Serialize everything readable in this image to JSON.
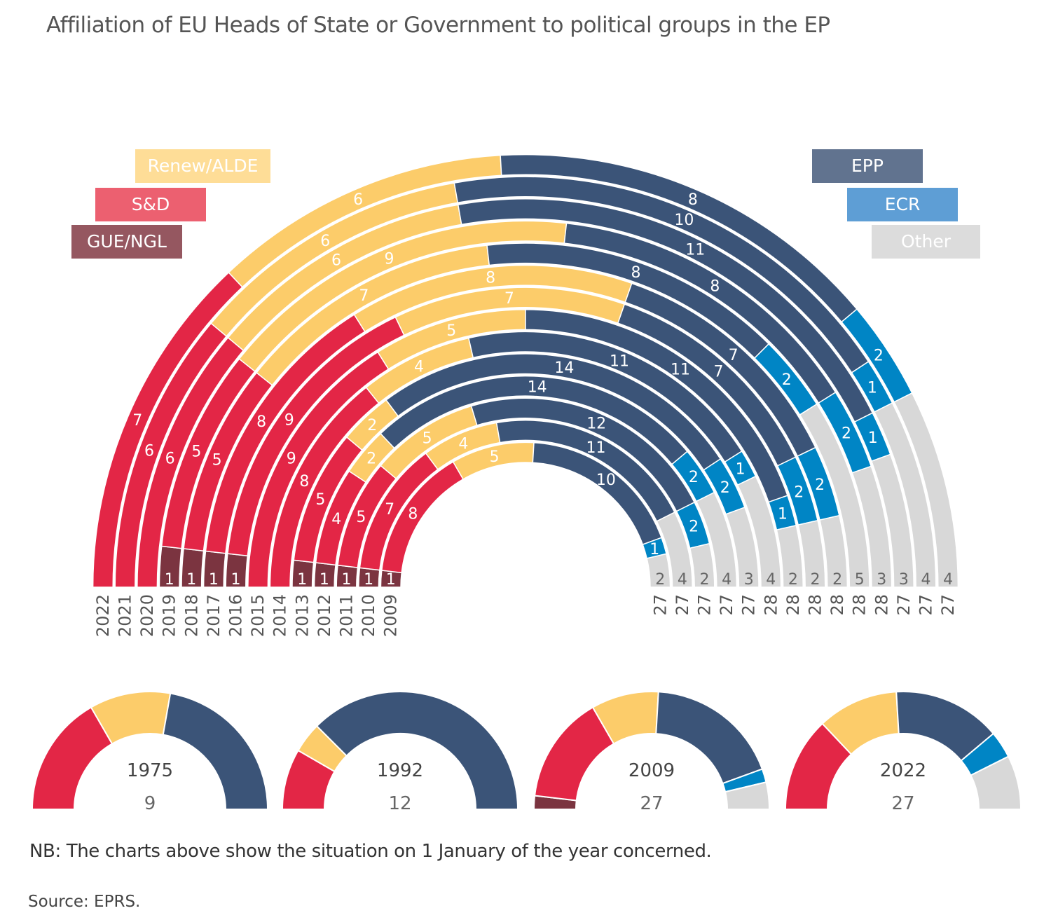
{
  "title": "Affiliation of EU Heads of State or Government to political groups in the EP",
  "note": "NB: The charts above show the situation on 1 January of the year concerned.",
  "source": "Source: EPRS.",
  "chart_data": [
    {
      "type": "stacked semicircle rings",
      "groups": [
        {
          "name": "GUE/NGL",
          "color": "#7b3440",
          "legend_color": "#955760"
        },
        {
          "name": "S&D",
          "color": "#e32646",
          "legend_color": "#ec6070"
        },
        {
          "name": "Renew/ALDE",
          "color": "#fccc6a",
          "legend_color": "#fedd97"
        },
        {
          "name": "EPP",
          "color": "#3b5478",
          "legend_color": "#61738f"
        },
        {
          "name": "ECR",
          "color": "#0085c5",
          "legend_color": "#5e9ed5"
        },
        {
          "name": "Other",
          "color": "#d8d8d8",
          "legend_color": "#dcdcdc"
        }
      ],
      "years": [
        "2009",
        "2010",
        "2011",
        "2012",
        "2013",
        "2014",
        "2015",
        "2016",
        "2017",
        "2018",
        "2019",
        "2020",
        "2021",
        "2022"
      ],
      "series": [
        {
          "name": "GUE/NGL",
          "values": [
            1,
            1,
            1,
            1,
            1,
            0,
            0,
            1,
            1,
            1,
            1,
            0,
            0,
            0
          ]
        },
        {
          "name": "S&D",
          "values": [
            8,
            7,
            5,
            4,
            5,
            8,
            9,
            9,
            8,
            5,
            5,
            6,
            6,
            7
          ]
        },
        {
          "name": "Renew/ALDE",
          "values": [
            5,
            4,
            5,
            2,
            2,
            4,
            5,
            7,
            8,
            7,
            9,
            6,
            6,
            6
          ]
        },
        {
          "name": "EPP",
          "values": [
            10,
            11,
            12,
            14,
            14,
            11,
            11,
            7,
            7,
            8,
            8,
            11,
            10,
            8
          ]
        },
        {
          "name": "ECR",
          "values": [
            1,
            0,
            2,
            2,
            2,
            1,
            1,
            2,
            2,
            2,
            2,
            1,
            1,
            2
          ]
        },
        {
          "name": "Other",
          "values": [
            2,
            4,
            2,
            4,
            3,
            4,
            2,
            2,
            2,
            5,
            3,
            3,
            4,
            4
          ]
        }
      ],
      "totals": [
        "27",
        "27",
        "27",
        "27",
        "27",
        "28",
        "28",
        "28",
        "28",
        "28",
        "28",
        "27",
        "27",
        "27"
      ]
    },
    {
      "type": "semicircle",
      "small_charts": [
        {
          "year": "1975",
          "total": "9",
          "values": [
            0,
            3,
            2,
            4,
            0,
            0
          ]
        },
        {
          "year": "1992",
          "total": "12",
          "values": [
            0,
            2,
            1,
            9,
            0,
            0
          ]
        },
        {
          "year": "2009",
          "total": "27",
          "values": [
            1,
            8,
            5,
            10,
            1,
            2
          ]
        },
        {
          "year": "2022",
          "total": "27",
          "values": [
            0,
            7,
            6,
            8,
            2,
            4
          ]
        }
      ]
    }
  ]
}
